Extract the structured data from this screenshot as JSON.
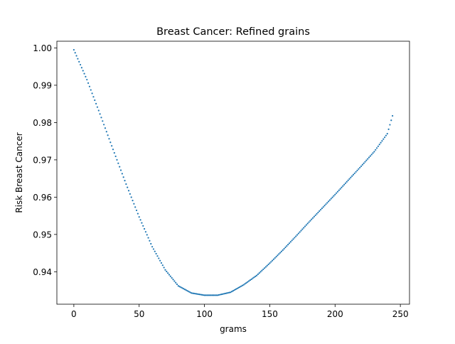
{
  "chart_data": {
    "type": "scatter",
    "title": "Breast Cancer: Refined grains",
    "xlabel": "grams",
    "ylabel": "Risk Breast Cancer",
    "xlim": [
      -13,
      257
    ],
    "ylim": [
      0.9313,
      1.0018
    ],
    "x_ticks": [
      0,
      50,
      100,
      150,
      200,
      250
    ],
    "x_tick_labels": [
      "0",
      "50",
      "100",
      "150",
      "200",
      "250"
    ],
    "y_ticks": [
      0.94,
      0.95,
      0.96,
      0.97,
      0.98,
      0.99,
      1.0
    ],
    "y_tick_labels": [
      "0.94",
      "0.95",
      "0.96",
      "0.97",
      "0.98",
      "0.99",
      "1.00"
    ],
    "grid": false,
    "legend": "none",
    "marker_color": "#1f77b4",
    "series": [
      {
        "x": [
          0,
          10,
          20,
          30,
          40,
          50,
          60,
          70,
          80,
          90,
          100,
          110,
          120,
          130,
          140,
          150,
          160,
          170,
          180,
          190,
          200,
          210,
          220,
          230,
          240,
          244
        ],
        "values": [
          0.9995,
          0.9915,
          0.9823,
          0.9728,
          0.9635,
          0.9547,
          0.9467,
          0.9405,
          0.9362,
          0.9343,
          0.9337,
          0.9337,
          0.9345,
          0.9365,
          0.939,
          0.9423,
          0.9458,
          0.9495,
          0.9533,
          0.957,
          0.9607,
          0.9645,
          0.9683,
          0.9722,
          0.977,
          0.9818
        ]
      }
    ]
  }
}
